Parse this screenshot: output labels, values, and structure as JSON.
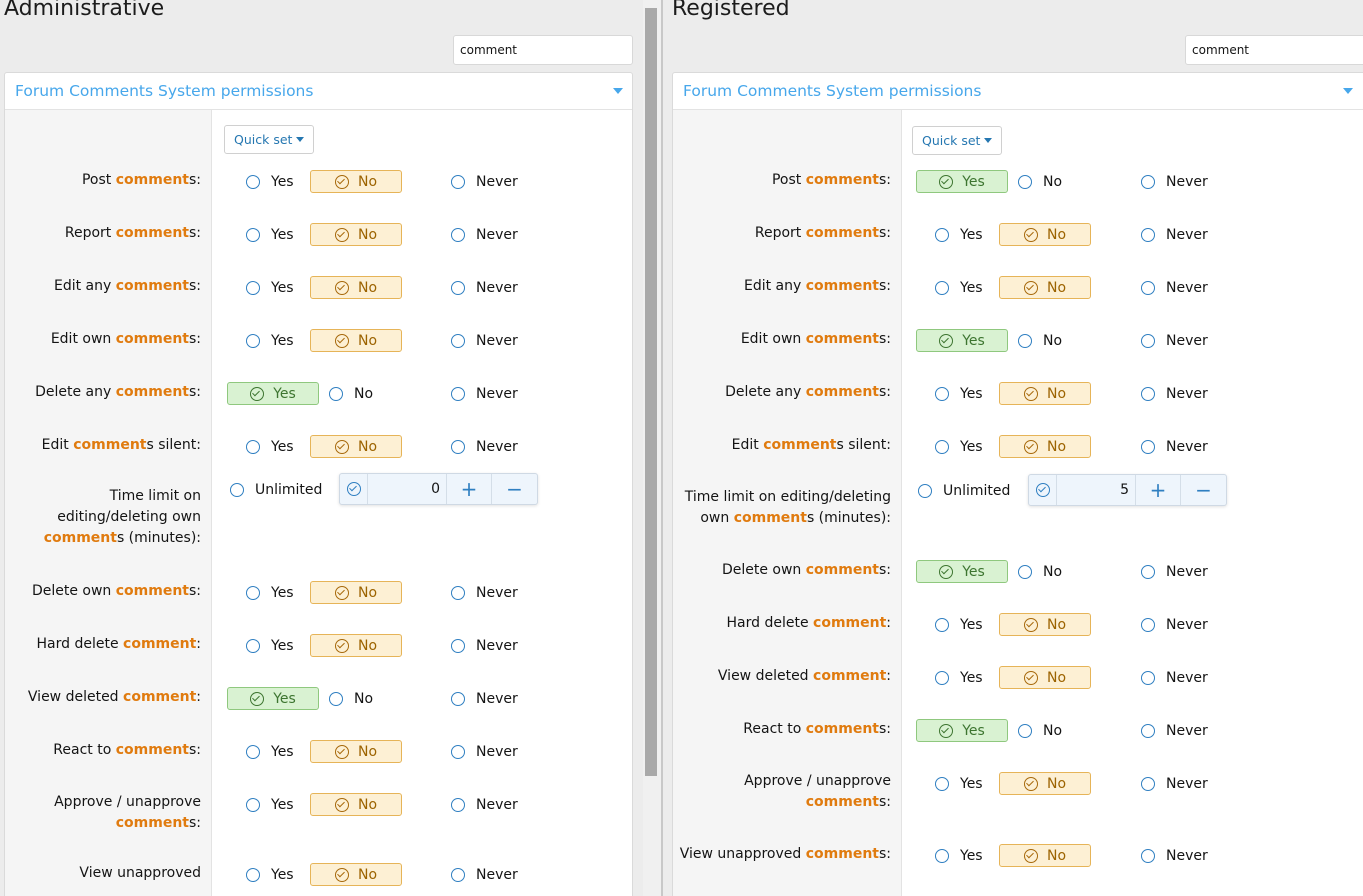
{
  "left": {
    "title": "Administrative",
    "filter_value": "comment",
    "panel_title": "Forum Comments System permissions",
    "quick_set_label": "Quick set",
    "rows": [
      {
        "pre": "Post ",
        "hl": "comment",
        "post": "s:",
        "selected": "No"
      },
      {
        "pre": "Report ",
        "hl": "comment",
        "post": "s:",
        "selected": "No"
      },
      {
        "pre": "Edit any ",
        "hl": "comment",
        "post": "s:",
        "selected": "No"
      },
      {
        "pre": "Edit own ",
        "hl": "comment",
        "post": "s:",
        "selected": "No"
      },
      {
        "pre": "Delete any ",
        "hl": "comment",
        "post": "s:",
        "selected": "Yes"
      },
      {
        "pre": "Edit ",
        "hl": "comment",
        "post": "s silent:",
        "selected": "No"
      },
      {
        "pre": "Time limit on editing/deleting own ",
        "hl": "comment",
        "post": "s (minutes):",
        "type": "stepper",
        "value": "0"
      },
      {
        "pre": "Delete own ",
        "hl": "comment",
        "post": "s:",
        "selected": "No"
      },
      {
        "pre": "Hard delete ",
        "hl": "comment",
        "post": ":",
        "selected": "No"
      },
      {
        "pre": "View deleted ",
        "hl": "comment",
        "post": ":",
        "selected": "Yes"
      },
      {
        "pre": "React to ",
        "hl": "comment",
        "post": "s:",
        "selected": "No"
      },
      {
        "pre": "Approve / unapprove ",
        "hl": "comment",
        "post": "s:",
        "selected": "No"
      },
      {
        "pre": "View unapproved",
        "hl": "",
        "post": "",
        "selected": "No"
      }
    ]
  },
  "right": {
    "title": "Registered",
    "filter_value": "comment",
    "panel_title": "Forum Comments System permissions",
    "quick_set_label": "Quick set",
    "rows": [
      {
        "pre": "Post ",
        "hl": "comment",
        "post": "s:",
        "selected": "Yes"
      },
      {
        "pre": "Report ",
        "hl": "comment",
        "post": "s:",
        "selected": "No"
      },
      {
        "pre": "Edit any ",
        "hl": "comment",
        "post": "s:",
        "selected": "No"
      },
      {
        "pre": "Edit own ",
        "hl": "comment",
        "post": "s:",
        "selected": "Yes"
      },
      {
        "pre": "Delete any ",
        "hl": "comment",
        "post": "s:",
        "selected": "No"
      },
      {
        "pre": "Edit ",
        "hl": "comment",
        "post": "s silent:",
        "selected": "No"
      },
      {
        "pre": "Time limit on editing/deleting own ",
        "hl": "comment",
        "post": "s (minutes):",
        "type": "stepper",
        "value": "5"
      },
      {
        "pre": "Delete own ",
        "hl": "comment",
        "post": "s:",
        "selected": "Yes"
      },
      {
        "pre": "Hard delete ",
        "hl": "comment",
        "post": ":",
        "selected": "No"
      },
      {
        "pre": "View deleted ",
        "hl": "comment",
        "post": ":",
        "selected": "No"
      },
      {
        "pre": "React to ",
        "hl": "comment",
        "post": "s:",
        "selected": "Yes"
      },
      {
        "pre": "Approve / unapprove ",
        "hl": "comment",
        "post": "s:",
        "selected": "No"
      },
      {
        "pre": "View unapproved ",
        "hl": "comment",
        "post": "s:",
        "selected": "No"
      }
    ]
  },
  "options": {
    "yes": "Yes",
    "no": "No",
    "never": "Never",
    "unlimited": "Unlimited"
  },
  "stepper": {
    "plus": "+",
    "minus": "−"
  },
  "colors": {
    "accent": "#47a7eb",
    "highlight": "#e07b0f",
    "no_bg": "#fdf0d4",
    "yes_bg": "#d9f2d2"
  }
}
